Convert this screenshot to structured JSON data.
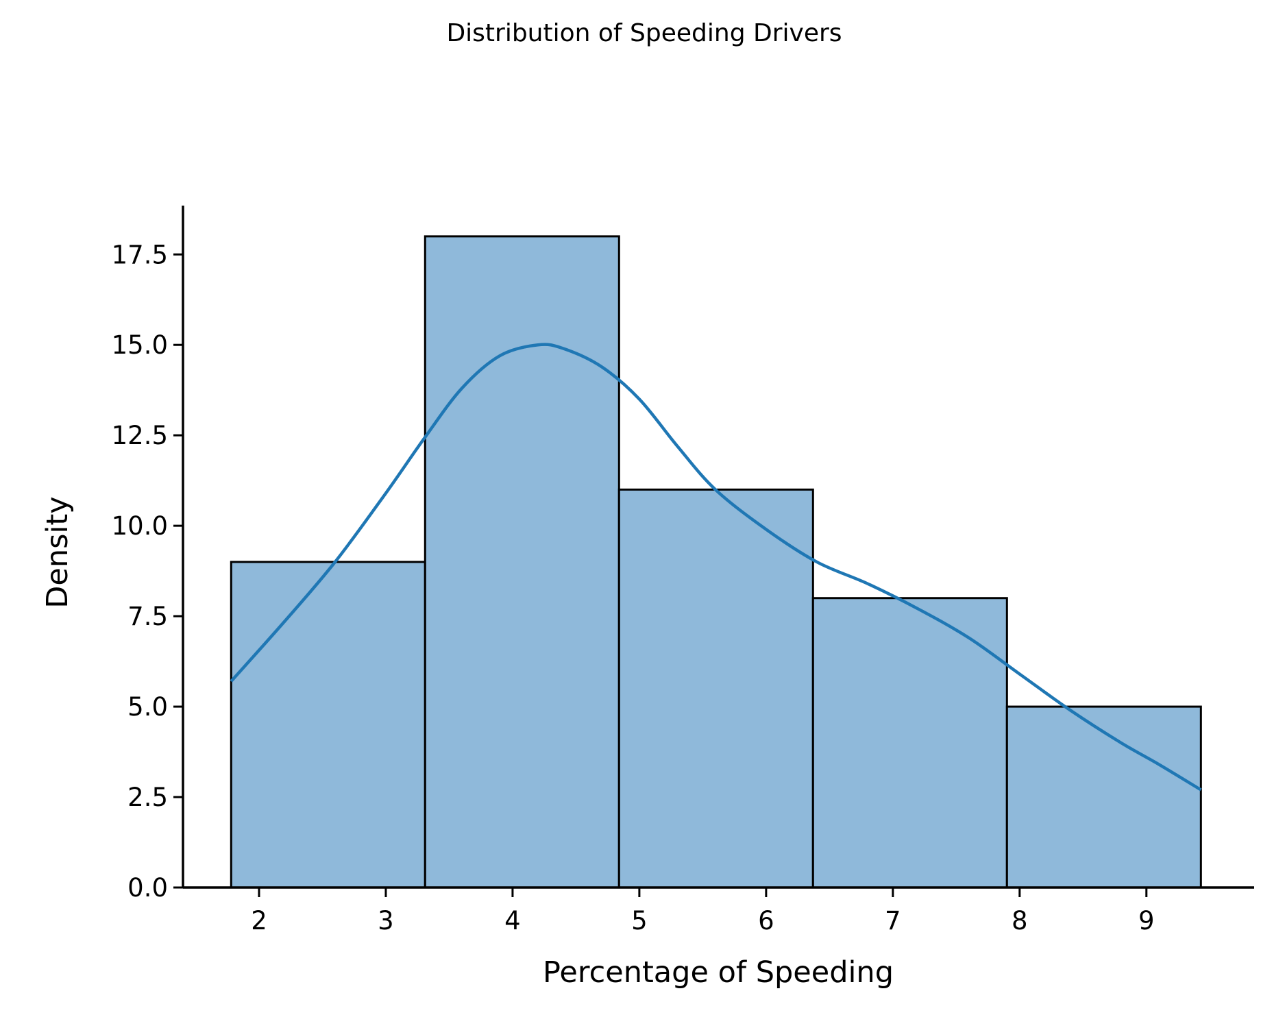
{
  "chart_data": {
    "type": "bar",
    "subtype": "histogram",
    "title": "Distribution of Speeding Drivers",
    "xlabel": "Percentage of Speeding",
    "ylabel": "Density",
    "xlim": [
      1.4,
      9.85
    ],
    "ylim": [
      0,
      18.85
    ],
    "xticks": [
      2,
      3,
      4,
      5,
      6,
      7,
      8,
      9
    ],
    "yticks": [
      0.0,
      2.5,
      5.0,
      7.5,
      10.0,
      12.5,
      15.0,
      17.5
    ],
    "ytick_labels": [
      "0.0",
      "2.5",
      "5.0",
      "7.5",
      "10.0",
      "12.5",
      "15.0",
      "17.5"
    ],
    "bins": [
      {
        "x0": 1.78,
        "x1": 3.31,
        "value": 9
      },
      {
        "x0": 3.31,
        "x1": 4.84,
        "value": 18
      },
      {
        "x0": 4.84,
        "x1": 6.37,
        "value": 11
      },
      {
        "x0": 6.37,
        "x1": 7.9,
        "value": 8
      },
      {
        "x0": 7.9,
        "x1": 9.43,
        "value": 5
      }
    ],
    "bar_color": "#8fb9da",
    "bar_edge_color": "#000000",
    "kde": {
      "color": "#1f77b4",
      "x": [
        1.78,
        2.2,
        2.6,
        3.0,
        3.3,
        3.6,
        3.9,
        4.2,
        4.4,
        4.7,
        5.0,
        5.3,
        5.6,
        6.0,
        6.4,
        6.8,
        7.2,
        7.6,
        8.0,
        8.4,
        8.8,
        9.1,
        9.43
      ],
      "y": [
        5.7,
        7.35,
        9.0,
        10.9,
        12.4,
        13.8,
        14.7,
        15.0,
        14.9,
        14.4,
        13.5,
        12.2,
        11.0,
        9.9,
        9.0,
        8.4,
        7.7,
        6.9,
        5.9,
        4.9,
        4.0,
        3.4,
        2.7
      ]
    }
  }
}
